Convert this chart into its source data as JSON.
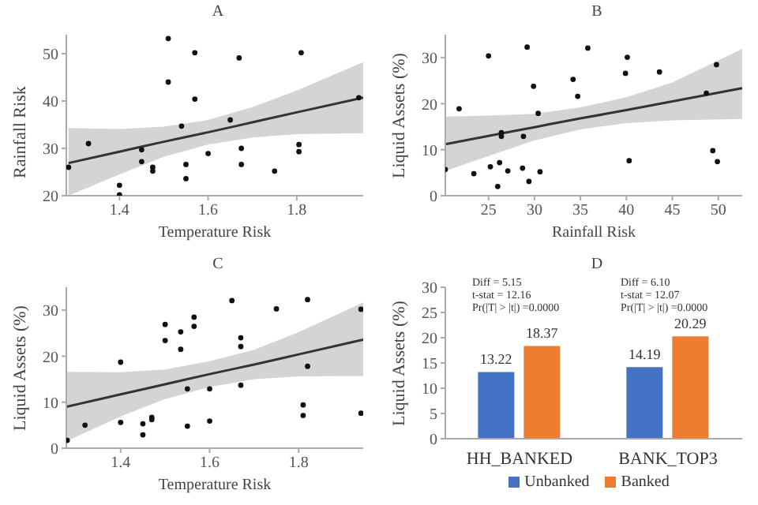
{
  "chart_data": [
    {
      "type": "scatter",
      "title": "A",
      "xlabel": "Temperature Risk",
      "ylabel": "Rainfall Risk",
      "xlim": [
        1.28,
        1.95
      ],
      "xticks": [
        1.4,
        1.6,
        1.8
      ],
      "ylim": [
        20,
        54
      ],
      "yticks": [
        20,
        30,
        40,
        50
      ],
      "grid": false,
      "legend": false,
      "series": [
        {
          "type": "scatter",
          "marker": "circle",
          "color": "#111111",
          "x": [
            1.285,
            1.33,
            1.4,
            1.4,
            1.45,
            1.45,
            1.475,
            1.475,
            1.51,
            1.51,
            1.54,
            1.55,
            1.55,
            1.57,
            1.57,
            1.6,
            1.65,
            1.67,
            1.675,
            1.675,
            1.75,
            1.81,
            1.805,
            1.805,
            1.94
          ],
          "values": [
            26,
            31,
            22.2,
            20.2,
            29.7,
            27.2,
            26,
            25.2,
            53.2,
            44,
            34.7,
            26.6,
            23.6,
            50.2,
            40.4,
            28.9,
            36,
            49.1,
            30,
            26.6,
            25.2,
            50.2,
            30.8,
            29.3,
            40.7
          ]
        },
        {
          "type": "line",
          "marker": "none",
          "color": "#333333",
          "x": [
            1.285,
            1.4,
            1.5,
            1.6,
            1.7,
            1.8,
            1.95
          ],
          "values": [
            26.9,
            29.3,
            31.4,
            33.4,
            35.5,
            37.6,
            40.7
          ],
          "lower": [
            20,
            24.5,
            28.2,
            30.8,
            32.3,
            33,
            33.2
          ],
          "upper": [
            34.3,
            34.1,
            34.6,
            36,
            38.7,
            42.2,
            48.2
          ]
        }
      ]
    },
    {
      "type": "scatter",
      "title": "B",
      "xlabel": "Rainfall Risk",
      "ylabel": "Liquid Assets (%)",
      "xlim": [
        20.3,
        52.6
      ],
      "xticks": [
        25,
        30,
        35,
        40,
        45,
        50
      ],
      "ylim": [
        0,
        35
      ],
      "yticks": [
        0,
        10,
        20,
        30
      ],
      "grid": false,
      "legend": false,
      "series": [
        {
          "type": "scatter",
          "marker": "circle",
          "color": "#111111",
          "x": [
            20.3,
            21.8,
            23.4,
            25,
            25.2,
            26,
            26.2,
            26.4,
            26.4,
            27.1,
            28.7,
            28.8,
            29.2,
            29.4,
            29.9,
            30.4,
            30.6,
            34.2,
            34.7,
            35.8,
            39.9,
            40.1,
            40.3,
            43.6,
            48.7,
            49.4,
            49.8,
            49.9
          ],
          "values": [
            5.7,
            18.9,
            4.8,
            30.4,
            6.3,
            2,
            7.2,
            13.7,
            12.9,
            5.4,
            6,
            12.9,
            32.3,
            3.1,
            23.8,
            17.9,
            5.2,
            25.3,
            21.6,
            32.1,
            26.6,
            30.1,
            7.6,
            26.9,
            22.3,
            9.8,
            28.5,
            7.4
          ]
        },
        {
          "type": "line",
          "marker": "none",
          "color": "#333333",
          "x": [
            20.3,
            25,
            30,
            35,
            40,
            45,
            52.6
          ],
          "values": [
            11.2,
            13,
            14.9,
            16.8,
            18.6,
            20.5,
            23.4
          ],
          "lower": [
            5.4,
            8.6,
            12,
            14.4,
            15.8,
            16.4,
            16.7
          ],
          "upper": [
            17.2,
            17.4,
            17.8,
            19.2,
            21.4,
            24.6,
            31.9
          ]
        }
      ]
    },
    {
      "type": "scatter",
      "title": "C",
      "xlabel": "Temperature Risk",
      "ylabel": "Liquid Assets (%)",
      "xlim": [
        1.278,
        1.945
      ],
      "xticks": [
        1.4,
        1.6,
        1.8
      ],
      "ylim": [
        0,
        35
      ],
      "yticks": [
        0,
        10,
        20,
        30
      ],
      "grid": false,
      "legend": false,
      "series": [
        {
          "type": "scatter",
          "marker": "circle",
          "color": "#111111",
          "x": [
            1.28,
            1.32,
            1.4,
            1.4,
            1.45,
            1.45,
            1.47,
            1.47,
            1.5,
            1.5,
            1.535,
            1.535,
            1.55,
            1.55,
            1.565,
            1.565,
            1.6,
            1.6,
            1.65,
            1.67,
            1.67,
            1.67,
            1.75,
            1.81,
            1.81,
            1.82,
            1.82,
            1.94,
            1.94
          ],
          "values": [
            1.7,
            5,
            18.7,
            5.6,
            5.3,
            2.9,
            6.7,
            6.2,
            26.9,
            23.4,
            25.3,
            21.5,
            12.9,
            4.8,
            28.5,
            26.5,
            12.9,
            5.9,
            32.1,
            24,
            22.1,
            13.7,
            30.3,
            9.4,
            7.1,
            32.3,
            17.8,
            30.2,
            7.6
          ]
        },
        {
          "type": "line",
          "marker": "none",
          "color": "#333333",
          "x": [
            1.278,
            1.4,
            1.5,
            1.6,
            1.7,
            1.8,
            1.945
          ],
          "values": [
            9,
            11.7,
            13.9,
            16.1,
            18.2,
            20.4,
            23.6
          ],
          "lower": [
            1.5,
            6.9,
            10.7,
            13.3,
            15,
            15.6,
            15.7
          ],
          "upper": [
            16.6,
            16.5,
            17.1,
            18.9,
            21.4,
            25.2,
            31.7
          ]
        }
      ]
    },
    {
      "type": "bar",
      "title": "D",
      "ylabel": "Liquid Assets (%)",
      "categories": [
        "HH_BANKED",
        "BANK_TOP3"
      ],
      "ylim": [
        0,
        30
      ],
      "yticks": [
        0,
        5,
        10,
        15,
        20,
        25,
        30
      ],
      "grid": false,
      "legend": "bottom",
      "data_labels": true,
      "series": [
        {
          "name": "Unbanked",
          "color": "#4472c4",
          "values": [
            13.22,
            14.19
          ]
        },
        {
          "name": "Banked",
          "color": "#ed7d31",
          "values": [
            18.37,
            20.29
          ]
        }
      ],
      "annotations": [
        "Diff = 5.15\nt-stat = 12.16\nPr(|T| > |t|) =0.0000",
        "Diff = 6.10\nt-stat = 12.07\nPr(|T| > |t|) =0.0000"
      ]
    }
  ]
}
